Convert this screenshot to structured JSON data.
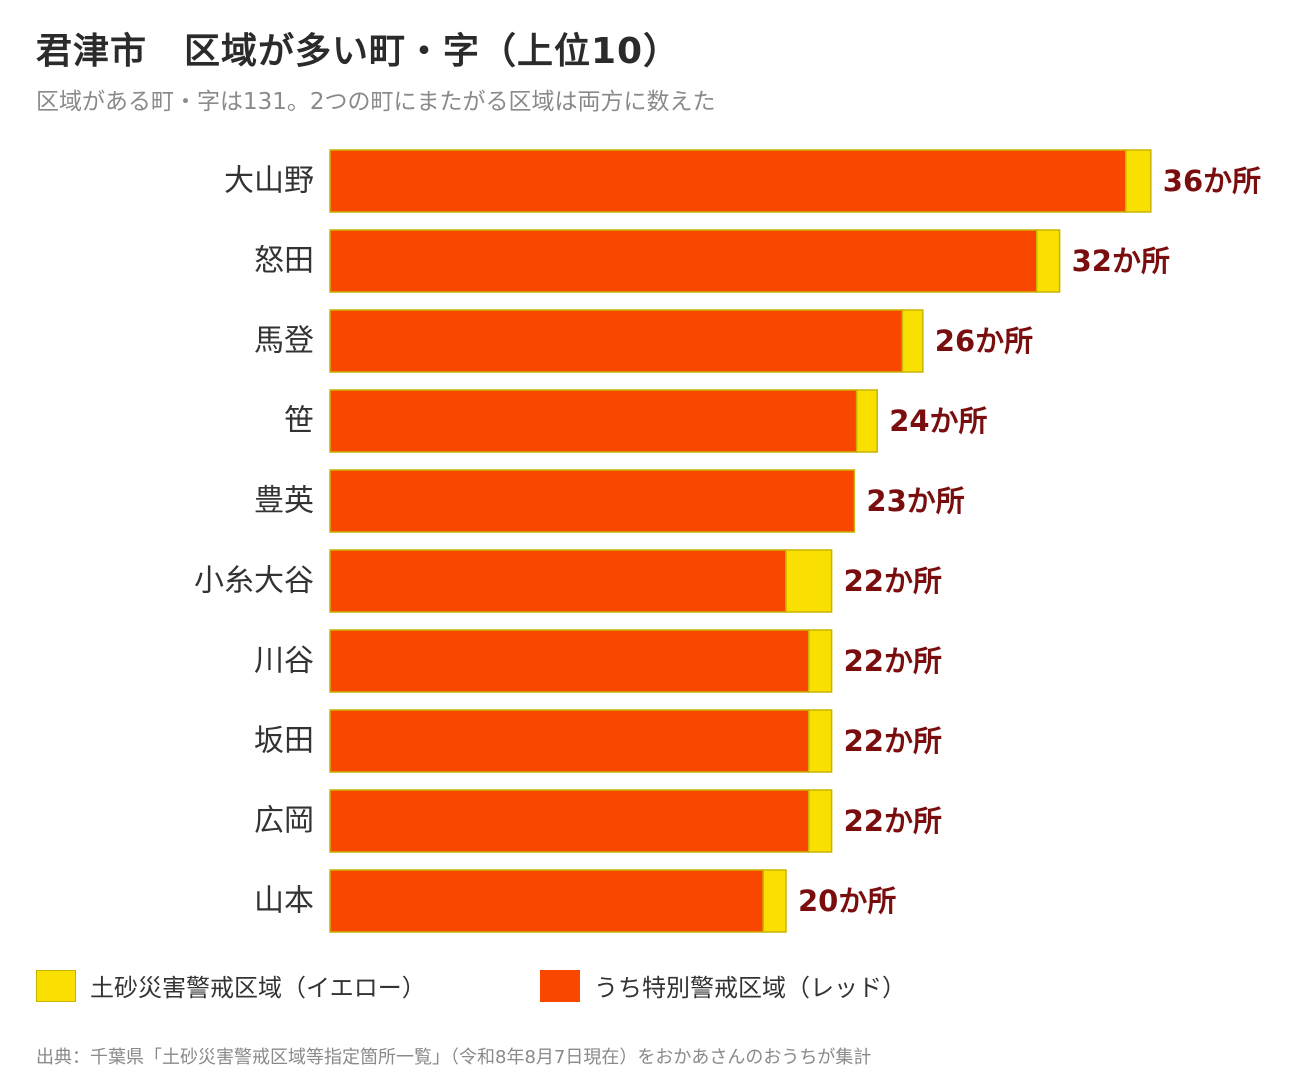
{
  "title": "君津市　区域が多い町・字（上位10）",
  "subtitle": "区域がある町・字は131。2つの町にまたがる区域は両方に数えた",
  "colors": {
    "red_series": "#f94700",
    "yellow_series": "#f9e000",
    "yellow_border": "#c8b400",
    "value_label": "#7a0e0e",
    "category_label": "#333333"
  },
  "chart_data": {
    "type": "bar",
    "orientation": "horizontal",
    "stacked": true,
    "value_suffix": "か所",
    "categories": [
      "大山野",
      "怒田",
      "馬登",
      "笹",
      "豊英",
      "小糸大谷",
      "川谷",
      "坂田",
      "広岡",
      "山本"
    ],
    "series": [
      {
        "name": "うち特別警戒区域（レッド）",
        "values": [
          34.9,
          31,
          25.1,
          23.1,
          23,
          20,
          21,
          21,
          21,
          19
        ]
      },
      {
        "name": "土砂災害警戒区域（イエロー）",
        "values": [
          1.1,
          1,
          0.9,
          0.9,
          0,
          2,
          1,
          1,
          1,
          1
        ]
      }
    ],
    "totals": [
      36,
      32,
      26,
      24,
      23,
      22,
      22,
      22,
      22,
      20
    ],
    "legend_position": "bottom",
    "grid": false
  },
  "legend": {
    "yellow_label": "土砂災害警戒区域（イエロー）",
    "red_label": "うち特別警戒区域（レッド）"
  },
  "source": "出典：千葉県「土砂災害警戒区域等指定箇所一覧」（令和8年8月7日現在）をおかあさんのおうちが集計"
}
